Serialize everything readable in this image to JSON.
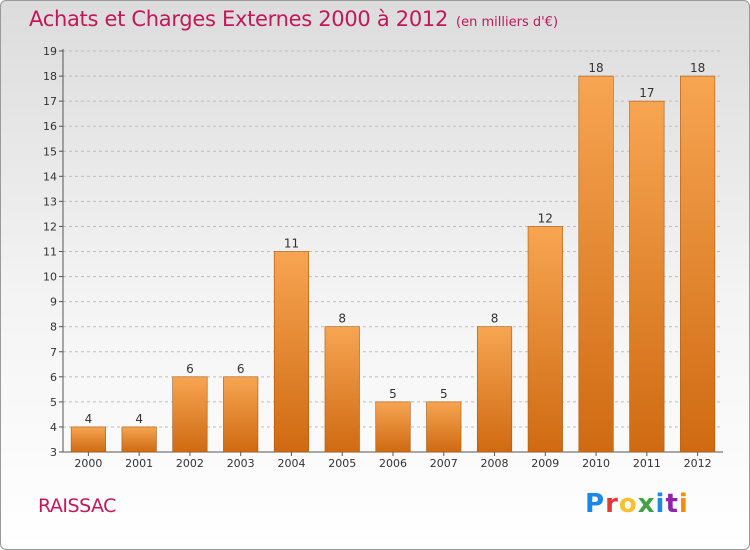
{
  "title": "Achats et Charges Externes 2000 à 2012",
  "title_unit": "(en milliers d'€)",
  "commune": "RAISSAC",
  "logo": "Proxiti",
  "logo_colors": [
    "#1e88e5",
    "#e53935",
    "#fbc02d",
    "#43a047",
    "#1e88e5",
    "#8e24aa",
    "#fb8c00"
  ],
  "colors": {
    "title": "#c2185b",
    "bar_top": "#f7a552",
    "bar_bottom": "#cf6a12",
    "bar_stroke": "#a65a12",
    "grid": "#bdbdbd"
  },
  "chart_data": {
    "type": "bar",
    "title": "Achats et Charges Externes 2000 à 2012",
    "subtitle": "(en milliers d'€)",
    "xlabel": "",
    "ylabel": "",
    "categories": [
      "2000",
      "2001",
      "2002",
      "2003",
      "2004",
      "2005",
      "2006",
      "2007",
      "2008",
      "2009",
      "2010",
      "2011",
      "2012"
    ],
    "values": [
      4,
      4,
      6,
      6,
      11,
      8,
      5,
      5,
      8,
      12,
      18,
      17,
      18
    ],
    "ylim": [
      3,
      19
    ],
    "yticks": [
      3,
      4,
      5,
      6,
      7,
      8,
      9,
      10,
      11,
      12,
      13,
      14,
      15,
      16,
      17,
      18,
      19
    ],
    "grid": true
  }
}
